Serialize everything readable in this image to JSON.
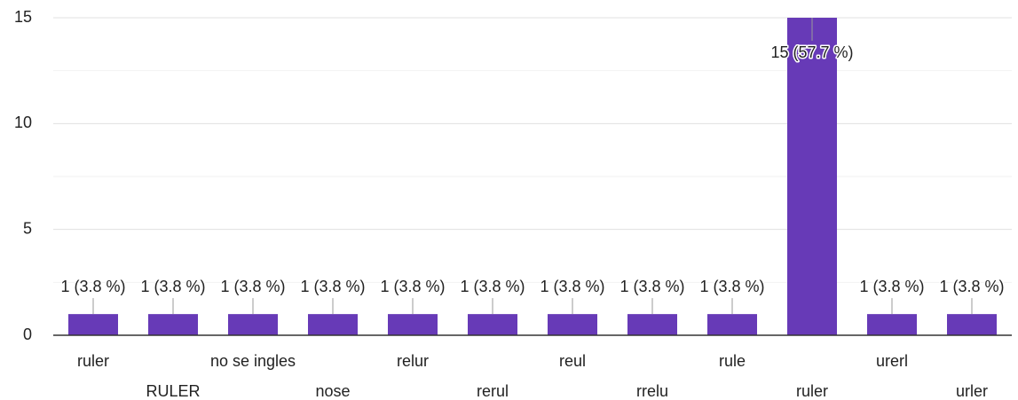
{
  "chart_data": {
    "type": "bar",
    "categories": [
      "ruler",
      "RULER",
      "no se ingles",
      "nose",
      "relur",
      "rerul",
      "reul",
      "rrelu",
      "rule",
      "ruler",
      "urerl",
      "urler"
    ],
    "values": [
      1,
      1,
      1,
      1,
      1,
      1,
      1,
      1,
      1,
      15,
      1,
      1
    ],
    "value_labels": [
      "1 (3.8 %)",
      "1 (3.8 %)",
      "1 (3.8 %)",
      "1 (3.8 %)",
      "1 (3.8 %)",
      "1 (3.8 %)",
      "1 (3.8 %)",
      "1 (3.8 %)",
      "1 (3.8 %)",
      "15 (57.7 %)",
      "1 (3.8 %)",
      "1 (3.8 %)"
    ],
    "color": "#673ab7",
    "ylim": [
      0,
      15
    ],
    "yticks": [
      0,
      5,
      10,
      15
    ],
    "minor_yticks": [
      2.5,
      7.5,
      12.5
    ],
    "grid": true
  }
}
